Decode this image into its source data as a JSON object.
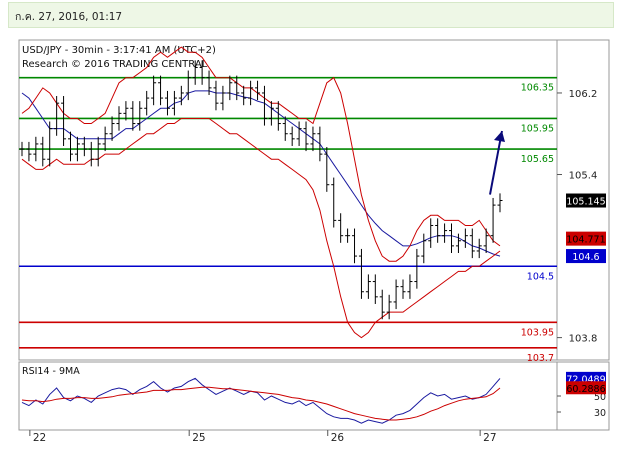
{
  "header": {
    "date_text": "ก.ค. 27, 2016, 01:17"
  },
  "chart_data": {
    "type": "line",
    "title": "USD/JPY - 30min - 3:17:41 AM (UTC+2)",
    "subtitle": "Research © 2016 TRADING CENTRAL",
    "x_tick_labels": [
      "22",
      "25",
      "26",
      "27"
    ],
    "y_tick_labels": [
      "106.2",
      "105.4",
      "103.8"
    ],
    "ylim": [
      103.6,
      106.7
    ],
    "colors": {
      "price": "#000000",
      "ma": "#1a1aa0",
      "bollinger": "#cc0000",
      "resistance": "#008800",
      "support": "#cc0000",
      "pivot": "#0000cc",
      "arrow": "#0a0a7a"
    },
    "levels": [
      {
        "label": "106.35",
        "value": 106.35,
        "kind": "resistance"
      },
      {
        "label": "105.95",
        "value": 105.95,
        "kind": "resistance"
      },
      {
        "label": "105.65",
        "value": 105.65,
        "kind": "resistance"
      },
      {
        "label": "104.5",
        "value": 104.5,
        "kind": "pivot"
      },
      {
        "label": "103.95",
        "value": 103.95,
        "kind": "support"
      },
      {
        "label": "103.7",
        "value": 103.7,
        "kind": "support"
      }
    ],
    "price_tags": [
      {
        "label": "105.145",
        "value": 105.145,
        "bg": "#000000",
        "fg": "#ffffff"
      },
      {
        "label": "104.771",
        "value": 104.771,
        "bg": "#cc0000",
        "fg": "#000000"
      },
      {
        "label": "104.6",
        "value": 104.6,
        "bg": "#0000cc",
        "fg": "#ffffff"
      }
    ],
    "series": [
      {
        "name": "price",
        "values": [
          105.65,
          105.6,
          105.7,
          105.55,
          105.85,
          106.1,
          105.75,
          105.6,
          105.7,
          105.65,
          105.55,
          105.7,
          105.8,
          105.9,
          106.0,
          106.05,
          105.9,
          106.05,
          106.15,
          106.3,
          106.15,
          106.05,
          106.15,
          106.2,
          106.35,
          106.45,
          106.35,
          106.25,
          106.1,
          106.2,
          106.3,
          106.2,
          106.15,
          106.25,
          106.2,
          105.95,
          106.05,
          105.9,
          105.8,
          105.75,
          105.85,
          105.7,
          105.8,
          105.6,
          105.3,
          104.95,
          104.8,
          104.8,
          104.6,
          104.25,
          104.35,
          104.2,
          104.05,
          104.15,
          104.3,
          104.25,
          104.35,
          104.6,
          104.75,
          104.9,
          104.8,
          104.85,
          104.7,
          104.75,
          104.8,
          104.65,
          104.7,
          104.8,
          105.1,
          105.145
        ]
      },
      {
        "name": "MA",
        "values": [
          106.2,
          106.15,
          106.05,
          105.95,
          105.85,
          105.85,
          105.85,
          105.8,
          105.75,
          105.75,
          105.75,
          105.75,
          105.75,
          105.75,
          105.8,
          105.85,
          105.85,
          105.9,
          105.95,
          106.0,
          106.05,
          106.05,
          106.1,
          106.12,
          106.2,
          106.22,
          106.22,
          106.22,
          106.2,
          106.2,
          106.2,
          106.18,
          106.16,
          106.15,
          106.12,
          106.1,
          106.05,
          106.0,
          105.95,
          105.9,
          105.85,
          105.8,
          105.75,
          105.7,
          105.6,
          105.5,
          105.4,
          105.3,
          105.2,
          105.1,
          105.0,
          104.92,
          104.85,
          104.8,
          104.75,
          104.7,
          104.7,
          104.72,
          104.75,
          104.78,
          104.8,
          104.8,
          104.8,
          104.78,
          104.74,
          104.7,
          104.68,
          104.65,
          104.62,
          104.6
        ]
      },
      {
        "name": "BB upper",
        "values": [
          106.0,
          106.05,
          106.15,
          106.25,
          106.2,
          106.1,
          106.0,
          105.95,
          105.95,
          105.9,
          105.9,
          105.95,
          106.0,
          106.15,
          106.3,
          106.35,
          106.35,
          106.4,
          106.45,
          106.55,
          106.6,
          106.55,
          106.6,
          106.65,
          106.6,
          106.6,
          106.55,
          106.45,
          106.35,
          106.35,
          106.35,
          106.3,
          106.25,
          106.25,
          106.2,
          106.15,
          106.1,
          106.1,
          106.05,
          106.0,
          105.95,
          105.95,
          105.9,
          106.1,
          106.3,
          106.35,
          106.2,
          105.9,
          105.55,
          105.2,
          104.95,
          104.75,
          104.6,
          104.55,
          104.55,
          104.6,
          104.7,
          104.85,
          104.95,
          105.0,
          105.0,
          104.95,
          104.95,
          104.95,
          104.9,
          104.9,
          104.95,
          104.85,
          104.75,
          104.7
        ]
      },
      {
        "name": "BB lower",
        "values": [
          105.55,
          105.5,
          105.45,
          105.45,
          105.5,
          105.55,
          105.5,
          105.5,
          105.5,
          105.5,
          105.55,
          105.55,
          105.6,
          105.6,
          105.6,
          105.65,
          105.7,
          105.75,
          105.8,
          105.8,
          105.85,
          105.9,
          105.9,
          105.95,
          105.95,
          105.95,
          105.95,
          105.95,
          105.9,
          105.85,
          105.8,
          105.8,
          105.75,
          105.7,
          105.65,
          105.6,
          105.55,
          105.55,
          105.5,
          105.45,
          105.4,
          105.35,
          105.25,
          105.05,
          104.75,
          104.5,
          104.2,
          103.95,
          103.85,
          103.8,
          103.85,
          103.95,
          104.0,
          104.05,
          104.05,
          104.05,
          104.1,
          104.15,
          104.2,
          104.25,
          104.3,
          104.35,
          104.4,
          104.45,
          104.45,
          104.5,
          104.5,
          104.55,
          104.6,
          104.65
        ]
      }
    ],
    "rsi": {
      "label": "RSI14 - 9MA",
      "ylim": [
        10,
        90
      ],
      "ticks": [
        "50",
        "30"
      ],
      "tags": [
        {
          "label": "72.0489",
          "value": 72.0489,
          "bg": "#0000cc",
          "fg": "#ffffff"
        },
        {
          "label": "60.2886",
          "value": 60.2886,
          "bg": "#cc0000",
          "fg": "#000000"
        }
      ],
      "series": [
        {
          "name": "RSI14",
          "values": [
            42,
            38,
            45,
            40,
            52,
            60,
            48,
            44,
            50,
            47,
            42,
            50,
            54,
            58,
            60,
            58,
            52,
            58,
            62,
            68,
            60,
            55,
            60,
            62,
            68,
            72,
            64,
            58,
            52,
            56,
            60,
            56,
            52,
            56,
            54,
            45,
            50,
            46,
            42,
            40,
            44,
            38,
            42,
            35,
            28,
            24,
            22,
            22,
            20,
            16,
            20,
            18,
            16,
            20,
            26,
            28,
            32,
            40,
            48,
            54,
            50,
            52,
            46,
            48,
            50,
            46,
            48,
            52,
            62,
            72
          ]
        },
        {
          "name": "9MA",
          "values": [
            45,
            44,
            44,
            43,
            44,
            46,
            47,
            47,
            48,
            48,
            47,
            47,
            48,
            49,
            51,
            52,
            53,
            54,
            55,
            57,
            57,
            57,
            58,
            58,
            59,
            60,
            61,
            61,
            60,
            59,
            59,
            58,
            57,
            56,
            55,
            54,
            53,
            52,
            50,
            48,
            47,
            45,
            44,
            42,
            40,
            37,
            34,
            31,
            28,
            26,
            24,
            22,
            21,
            20,
            20,
            21,
            22,
            24,
            27,
            31,
            34,
            38,
            41,
            44,
            46,
            47,
            48,
            49,
            53,
            60
          ]
        }
      ]
    }
  }
}
